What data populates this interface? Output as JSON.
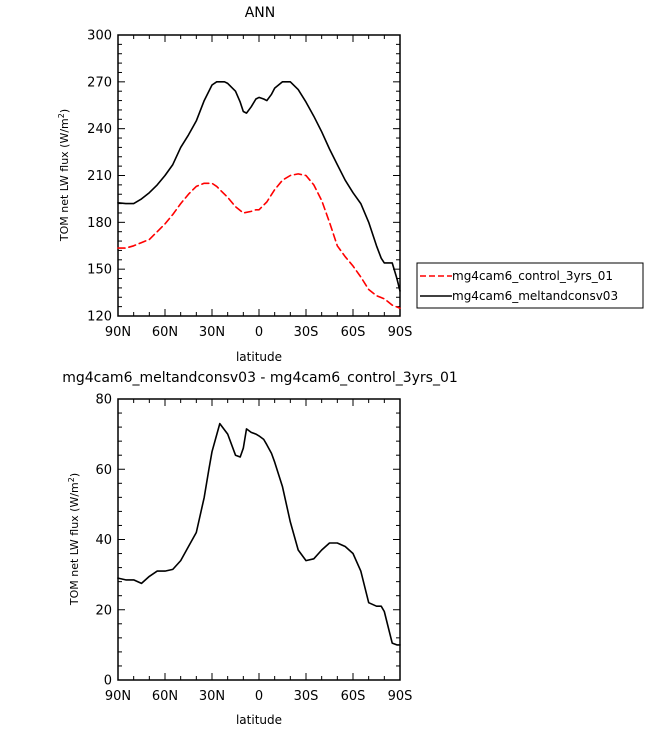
{
  "chart_data": [
    {
      "type": "line",
      "title": "ANN",
      "xlabel": "latitude",
      "ylabel_main": "TOM net LW flux (W/m",
      "ylabel_sup": "2",
      "ylabel_close": ")",
      "xlim": [
        90,
        -90
      ],
      "ylim": [
        120,
        300
      ],
      "x_ticks": [
        90,
        60,
        30,
        0,
        -30,
        -60,
        -90
      ],
      "x_tick_labels": [
        "90N",
        "60N",
        "30N",
        "0",
        "30S",
        "60S",
        "90S"
      ],
      "y_ticks": [
        120,
        150,
        180,
        210,
        240,
        270,
        300
      ],
      "y_tick_labels": [
        "120",
        "150",
        "180",
        "210",
        "240",
        "270",
        "300"
      ],
      "legend_position": "right",
      "series": [
        {
          "name": "mg4cam6_control_3yrs_01",
          "color": "#ff0000",
          "style": "dashed",
          "x": [
            90,
            85,
            80,
            75,
            70,
            65,
            60,
            55,
            50,
            45,
            40,
            35,
            30,
            27,
            25,
            20,
            15,
            10,
            5,
            2,
            0,
            -5,
            -10,
            -15,
            -20,
            -25,
            -30,
            -35,
            -40,
            -45,
            -50,
            -55,
            -60,
            -65,
            -70,
            -75,
            -80,
            -85,
            -90
          ],
          "values": [
            163.5,
            163.5,
            165,
            167,
            169,
            174,
            179,
            185,
            192,
            198,
            203,
            205,
            205,
            203,
            201,
            196,
            190,
            186,
            187,
            188,
            188,
            193,
            201,
            207,
            210,
            211,
            210,
            204,
            194,
            180,
            165,
            158,
            152,
            145,
            137,
            133,
            131,
            127,
            125
          ]
        },
        {
          "name": "mg4cam6_meltandconsv03",
          "color": "#000000",
          "style": "solid",
          "x": [
            90,
            85,
            80,
            75,
            70,
            65,
            60,
            55,
            50,
            45,
            40,
            35,
            30,
            27,
            25,
            22,
            20,
            15,
            12,
            10,
            8,
            5,
            2,
            0,
            -3,
            -5,
            -8,
            -10,
            -15,
            -20,
            -25,
            -30,
            -35,
            -40,
            -45,
            -50,
            -55,
            -60,
            -65,
            -70,
            -75,
            -78,
            -80,
            -85,
            -88,
            -90
          ],
          "values": [
            192.5,
            192,
            192,
            195,
            199,
            204,
            210,
            217,
            228,
            236,
            245,
            258,
            268,
            270,
            270,
            270,
            269,
            264,
            257,
            251,
            250,
            254,
            259,
            260,
            259,
            258,
            262,
            266,
            270,
            270,
            265,
            257,
            248,
            238,
            227,
            217,
            207,
            199,
            192,
            180,
            165,
            157,
            154,
            154,
            144,
            136
          ]
        }
      ]
    },
    {
      "type": "line",
      "title": "mg4cam6_meltandconsv03 - mg4cam6_control_3yrs_01",
      "xlabel": "latitude",
      "ylabel_main": "TOM net LW flux (W/m",
      "ylabel_sup": "2",
      "ylabel_close": ")",
      "xlim": [
        90,
        -90
      ],
      "ylim": [
        0,
        80
      ],
      "x_ticks": [
        90,
        60,
        30,
        0,
        -30,
        -60,
        -90
      ],
      "x_tick_labels": [
        "90N",
        "60N",
        "30N",
        "0",
        "30S",
        "60S",
        "90S"
      ],
      "y_ticks": [
        0,
        20,
        40,
        60,
        80
      ],
      "y_tick_labels": [
        "0",
        "20",
        "40",
        "60",
        "80"
      ],
      "series": [
        {
          "color": "#000000",
          "style": "solid",
          "x": [
            90,
            85,
            80,
            75,
            70,
            65,
            60,
            55,
            50,
            45,
            40,
            35,
            32,
            30,
            25,
            20,
            15,
            12,
            10,
            8,
            5,
            2,
            0,
            -3,
            -5,
            -8,
            -10,
            -15,
            -20,
            -25,
            -30,
            -35,
            -40,
            -45,
            -50,
            -55,
            -60,
            -65,
            -70,
            -75,
            -78,
            -80,
            -85,
            -88,
            -90
          ],
          "values": [
            29,
            28.5,
            28.5,
            27.5,
            29.5,
            31,
            31,
            31.5,
            34,
            38,
            42,
            52,
            60,
            65,
            73,
            70,
            64,
            63.5,
            66,
            71.5,
            70.5,
            70,
            69.5,
            68.5,
            67,
            64.5,
            62,
            55,
            45,
            37,
            34,
            34.5,
            37,
            39,
            39,
            38,
            36,
            31,
            22,
            21,
            21,
            19.5,
            10.5,
            10,
            10
          ]
        }
      ]
    }
  ]
}
